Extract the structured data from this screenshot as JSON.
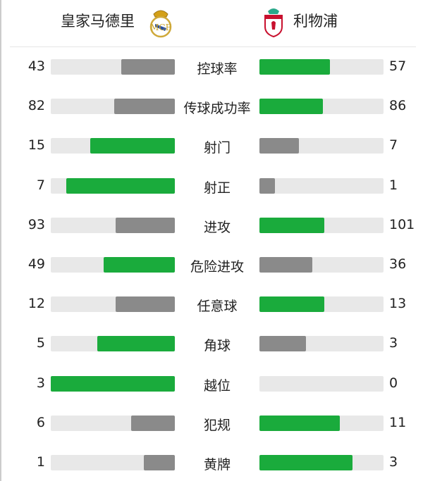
{
  "home": {
    "name": "皇家马德里",
    "crest": "real-madrid-crest"
  },
  "away": {
    "name": "利物浦",
    "crest": "liverpool-crest"
  },
  "colors": {
    "win": "#1aab3c",
    "lose": "#8a8a8a",
    "track": "#e8e8e8"
  },
  "stats": [
    {
      "label": "控球率",
      "home": 43,
      "away": 57
    },
    {
      "label": "传球成功率",
      "home": 82,
      "away": 86
    },
    {
      "label": "射门",
      "home": 15,
      "away": 7
    },
    {
      "label": "射正",
      "home": 7,
      "away": 1
    },
    {
      "label": "进攻",
      "home": 93,
      "away": 101
    },
    {
      "label": "危险进攻",
      "home": 49,
      "away": 36
    },
    {
      "label": "任意球",
      "home": 12,
      "away": 13
    },
    {
      "label": "角球",
      "home": 5,
      "away": 3
    },
    {
      "label": "越位",
      "home": 3,
      "away": 0
    },
    {
      "label": "犯规",
      "home": 6,
      "away": 11
    },
    {
      "label": "黄牌",
      "home": 1,
      "away": 3
    }
  ]
}
